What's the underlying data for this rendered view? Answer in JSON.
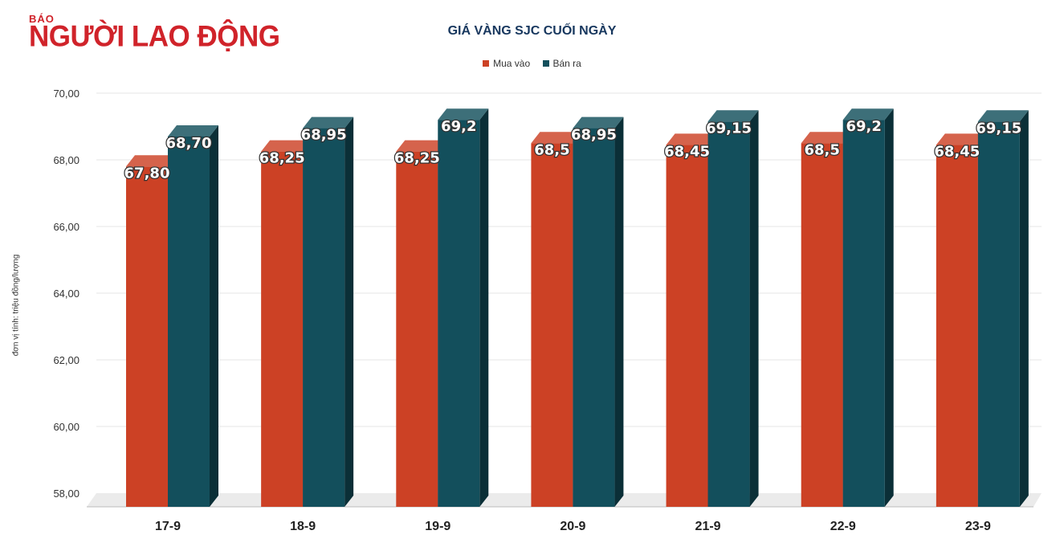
{
  "logo": {
    "small": "BÁO",
    "big": "NGƯỜI LAO ĐỘNG"
  },
  "colors": {
    "buy": "#cc4125",
    "sell": "#134f5c",
    "grid": "#e5e5e5"
  },
  "chart_data": {
    "type": "bar",
    "title": "GIÁ VÀNG SJC CUỐI NGÀY",
    "ylabel": "đơn vị tính: triệu đồng/lượng",
    "xlabel": "",
    "ylim": [
      58,
      70
    ],
    "yticks": [
      "58,00",
      "60,00",
      "62,00",
      "64,00",
      "66,00",
      "68,00",
      "70,00"
    ],
    "ytick_values": [
      58,
      60,
      62,
      64,
      66,
      68,
      70
    ],
    "categories": [
      "17-9",
      "18-9",
      "19-9",
      "20-9",
      "21-9",
      "22-9",
      "23-9"
    ],
    "legend_position": "top-center",
    "grid": true,
    "series": [
      {
        "name": "Mua vào",
        "color": "#cc4125",
        "values": [
          67.8,
          68.25,
          68.25,
          68.5,
          68.45,
          68.5,
          68.45
        ],
        "labels": [
          "67,80",
          "68,25",
          "68,25",
          "68,5",
          "68,45",
          "68,5",
          "68,45"
        ]
      },
      {
        "name": "Bán ra",
        "color": "#134f5c",
        "values": [
          68.7,
          68.95,
          69.2,
          68.95,
          69.15,
          69.2,
          69.15
        ],
        "labels": [
          "68,70",
          "68,95",
          "69,2",
          "68,95",
          "69,15",
          "69,2",
          "69,15"
        ]
      }
    ]
  }
}
